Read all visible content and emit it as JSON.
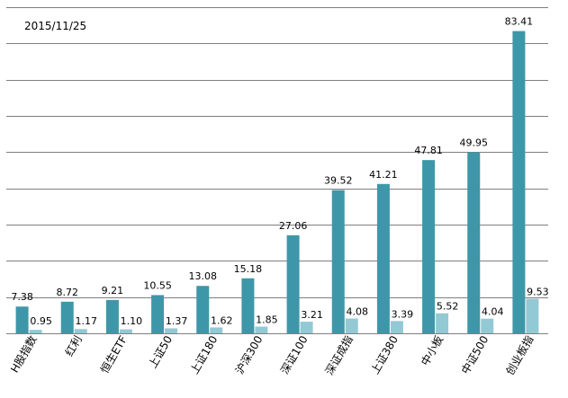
{
  "header": {
    "date_text": "2015/11/25"
  },
  "colors": {
    "series_primary": "#3e97a8",
    "series_secondary": "#93c9d4",
    "gridline": "#7f7f7f",
    "text": "#000000"
  },
  "chart_data": {
    "type": "bar",
    "title": "",
    "xlabel": "",
    "ylabel": "",
    "ylim": [
      0,
      90
    ],
    "ytick_step": 10,
    "grid": true,
    "y_tick_labels_visible": false,
    "categories": [
      "H股指数",
      "红利",
      "恒生ETF",
      "上证50",
      "上证180",
      "沪深300",
      "深证100",
      "深证成指",
      "上证380",
      "中小板",
      "中证500",
      "创业板指"
    ],
    "series": [
      {
        "values": [
          7.38,
          8.72,
          9.21,
          10.55,
          13.08,
          15.18,
          27.06,
          39.52,
          41.21,
          47.81,
          49.95,
          83.41
        ],
        "labels": [
          "7.38",
          "8.72",
          "9.21",
          "10.55",
          "13.08",
          "15.18",
          "27.06",
          "39.52",
          "41.21",
          "47.81",
          "49.95",
          "83.41"
        ],
        "color": "#3e97a8"
      },
      {
        "values": [
          0.95,
          1.17,
          1.1,
          1.37,
          1.62,
          1.85,
          3.21,
          4.08,
          3.39,
          5.52,
          4.04,
          9.53
        ],
        "labels": [
          "0.95",
          "1.17",
          "1.10",
          "1.37",
          "1.62",
          "1.85",
          "3.21",
          "4.08",
          "3.39",
          "5.52",
          "4.04",
          "9.53"
        ],
        "color": "#93c9d4"
      }
    ]
  }
}
